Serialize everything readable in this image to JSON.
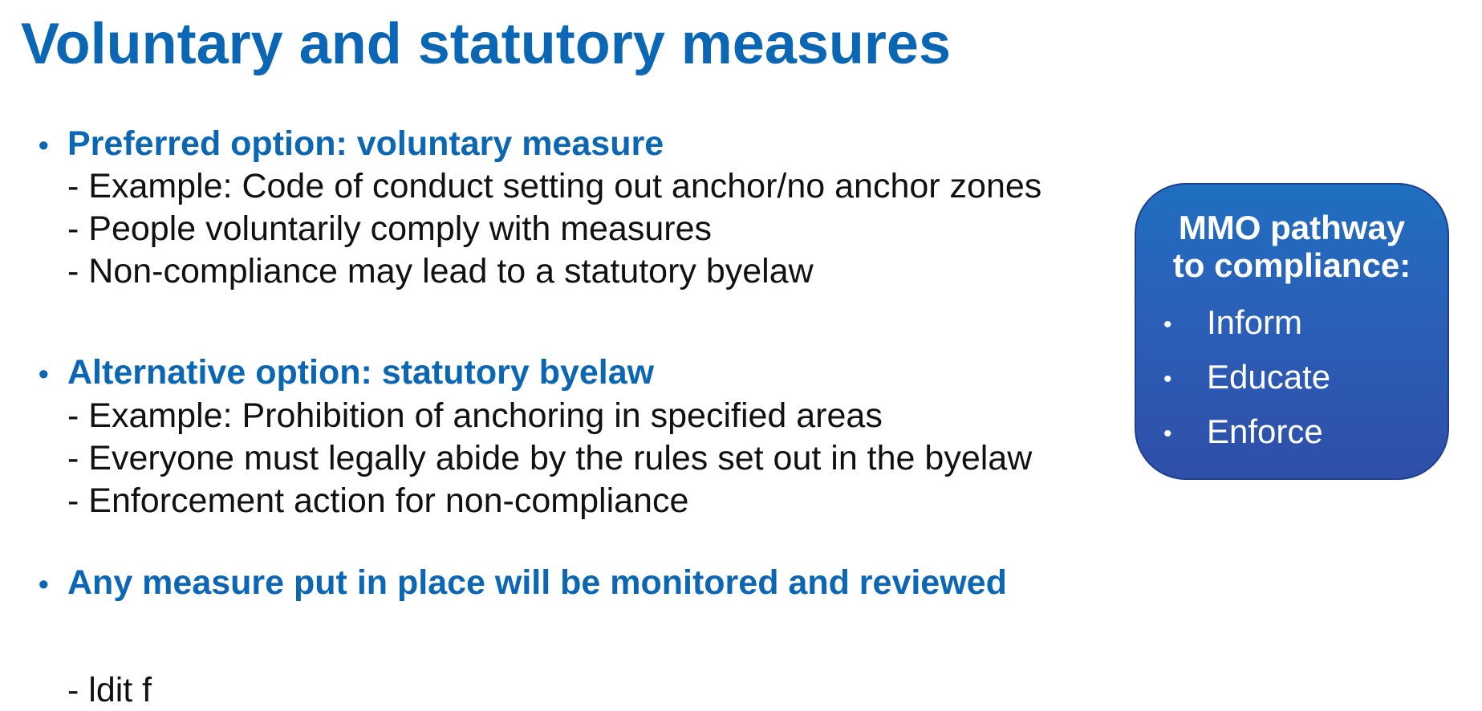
{
  "slide": {
    "title": "Voluntary and statutory measures"
  },
  "sections": [
    {
      "heading": "Preferred option: voluntary measure",
      "lines": [
        "- Example: Code of conduct setting out anchor/no anchor zones",
        "- People voluntarily comply with measures",
        "- Non-compliance may lead to a statutory byelaw"
      ]
    },
    {
      "heading": "Alternative option: statutory byelaw",
      "lines": [
        "- Example: Prohibition of anchoring in specified areas",
        "- Everyone must legally abide by the rules set out in the byelaw",
        "- Enforcement action for non-compliance"
      ]
    },
    {
      "heading": "Any measure put in place will be monitored and reviewed",
      "lines": []
    }
  ],
  "bullet_glyph": "•",
  "partial_text": "-   ldit    f                    ",
  "pathway_box": {
    "title_line1": "MMO pathway",
    "title_line2": "to compliance:",
    "items": [
      "Inform",
      "Educate",
      "Enforce"
    ],
    "gradient_top": "#1f6fc0",
    "gradient_bottom": "#2f4fa8"
  },
  "colors": {
    "heading_blue": "#0b66b4",
    "body_text": "#111111"
  }
}
